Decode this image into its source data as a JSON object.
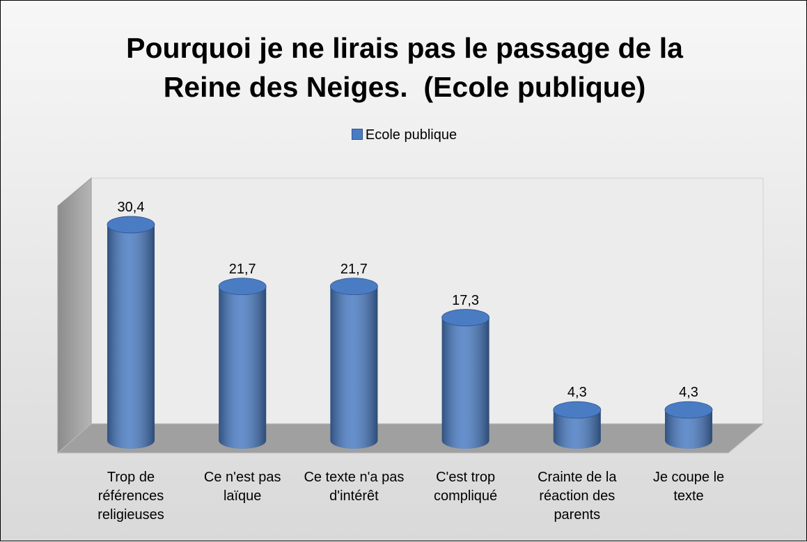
{
  "chart_data": {
    "type": "bar3d",
    "title": "Pourquoi je ne lirais pas le passage de la Reine des Neiges.  (Ecole publique)",
    "categories": [
      "Trop de références religieuses",
      "Ce n'est pas laïque",
      "Ce texte n'a pas d'intérêt",
      "C'est trop compliqué",
      "Crainte de la réaction des parents",
      "Je coupe le texte"
    ],
    "series": [
      {
        "name": "Ecole publique",
        "color": "#4a7cc4",
        "values": [
          30.4,
          21.7,
          21.7,
          17.3,
          4.3,
          4.3
        ],
        "value_labels": [
          "30,4",
          "21,7",
          "21,7",
          "17,3",
          "4,3",
          "4,3"
        ]
      }
    ],
    "legend": "top"
  }
}
